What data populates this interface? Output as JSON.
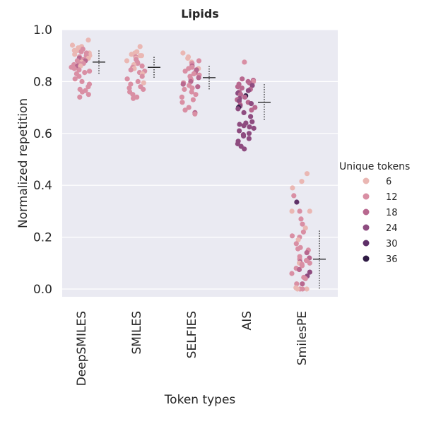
{
  "chart_data": {
    "type": "scatter",
    "title": "Lipids",
    "xlabel": "Token types",
    "ylabel": "Normalized repetition",
    "categories": [
      "DeepSMILES",
      "SMILES",
      "SELFIES",
      "AIS",
      "SmilesPE"
    ],
    "ylim": [
      -0.03,
      1.0
    ],
    "yticks": [
      0.0,
      0.2,
      0.4,
      0.6,
      0.8,
      1.0
    ],
    "grid": true,
    "legend": {
      "title": "Unique tokens",
      "placement": "right",
      "entries": [
        "6",
        "12",
        "18",
        "24",
        "30",
        "36"
      ],
      "colors": [
        "#eab7b3",
        "#d98fa4",
        "#b8688f",
        "#8e4c80",
        "#5e3068",
        "#2f1b44"
      ]
    },
    "summary": [
      {
        "category": "DeepSMILES",
        "mean": 0.875,
        "std_low": 0.825,
        "std_high": 0.92
      },
      {
        "category": "SMILES",
        "mean": 0.855,
        "std_low": 0.81,
        "std_high": 0.895
      },
      {
        "category": "SELFIES",
        "mean": 0.815,
        "std_low": 0.765,
        "std_high": 0.86
      },
      {
        "category": "AIS",
        "mean": 0.72,
        "std_low": 0.65,
        "std_high": 0.79
      },
      {
        "category": "SmilesPE",
        "mean": 0.115,
        "std_low": 0.0,
        "std_high": 0.225
      }
    ],
    "series": [
      {
        "category": "DeepSMILES",
        "points": [
          [
            0.96,
            6
          ],
          [
            0.94,
            8
          ],
          [
            0.935,
            6
          ],
          [
            0.93,
            6
          ],
          [
            0.93,
            8
          ],
          [
            0.925,
            10
          ],
          [
            0.92,
            6
          ],
          [
            0.92,
            8
          ],
          [
            0.915,
            12
          ],
          [
            0.91,
            6
          ],
          [
            0.91,
            10
          ],
          [
            0.905,
            8
          ],
          [
            0.9,
            6
          ],
          [
            0.9,
            14
          ],
          [
            0.895,
            12
          ],
          [
            0.89,
            8
          ],
          [
            0.89,
            20
          ],
          [
            0.885,
            10
          ],
          [
            0.88,
            12
          ],
          [
            0.88,
            16
          ],
          [
            0.875,
            8
          ],
          [
            0.87,
            10
          ],
          [
            0.87,
            14
          ],
          [
            0.865,
            12
          ],
          [
            0.86,
            16
          ],
          [
            0.86,
            8
          ],
          [
            0.855,
            12
          ],
          [
            0.85,
            10
          ],
          [
            0.845,
            14
          ],
          [
            0.84,
            12
          ],
          [
            0.835,
            10
          ],
          [
            0.83,
            12
          ],
          [
            0.82,
            14
          ],
          [
            0.81,
            10
          ],
          [
            0.8,
            12
          ],
          [
            0.79,
            14
          ],
          [
            0.78,
            10
          ],
          [
            0.77,
            12
          ],
          [
            0.765,
            10
          ],
          [
            0.76,
            12
          ],
          [
            0.75,
            14
          ],
          [
            0.74,
            12
          ]
        ]
      },
      {
        "category": "SMILES",
        "points": [
          [
            0.935,
            6
          ],
          [
            0.915,
            6
          ],
          [
            0.91,
            8
          ],
          [
            0.905,
            6
          ],
          [
            0.9,
            8
          ],
          [
            0.9,
            6
          ],
          [
            0.895,
            10
          ],
          [
            0.89,
            8
          ],
          [
            0.885,
            12
          ],
          [
            0.88,
            8
          ],
          [
            0.875,
            10
          ],
          [
            0.87,
            12
          ],
          [
            0.865,
            8
          ],
          [
            0.86,
            10
          ],
          [
            0.855,
            12
          ],
          [
            0.85,
            8
          ],
          [
            0.845,
            14
          ],
          [
            0.84,
            10
          ],
          [
            0.835,
            12
          ],
          [
            0.83,
            8
          ],
          [
            0.82,
            10
          ],
          [
            0.81,
            12
          ],
          [
            0.8,
            10
          ],
          [
            0.795,
            8
          ],
          [
            0.79,
            12
          ],
          [
            0.78,
            10
          ],
          [
            0.775,
            12
          ],
          [
            0.77,
            10
          ],
          [
            0.76,
            12
          ],
          [
            0.75,
            10
          ],
          [
            0.74,
            12
          ],
          [
            0.735,
            12
          ]
        ]
      },
      {
        "category": "SELFIES",
        "points": [
          [
            0.91,
            6
          ],
          [
            0.895,
            8
          ],
          [
            0.89,
            8
          ],
          [
            0.88,
            10
          ],
          [
            0.875,
            6
          ],
          [
            0.87,
            12
          ],
          [
            0.865,
            10
          ],
          [
            0.86,
            16
          ],
          [
            0.855,
            12
          ],
          [
            0.85,
            14
          ],
          [
            0.85,
            8
          ],
          [
            0.845,
            18
          ],
          [
            0.84,
            12
          ],
          [
            0.835,
            16
          ],
          [
            0.83,
            14
          ],
          [
            0.825,
            10
          ],
          [
            0.82,
            12
          ],
          [
            0.815,
            18
          ],
          [
            0.81,
            14
          ],
          [
            0.805,
            12
          ],
          [
            0.8,
            16
          ],
          [
            0.795,
            14
          ],
          [
            0.79,
            18
          ],
          [
            0.785,
            12
          ],
          [
            0.78,
            16
          ],
          [
            0.775,
            14
          ],
          [
            0.77,
            12
          ],
          [
            0.76,
            14
          ],
          [
            0.75,
            12
          ],
          [
            0.74,
            14
          ],
          [
            0.73,
            12
          ],
          [
            0.72,
            14
          ],
          [
            0.7,
            12
          ],
          [
            0.69,
            14
          ],
          [
            0.68,
            16
          ],
          [
            0.675,
            14
          ]
        ]
      },
      {
        "category": "AIS",
        "points": [
          [
            0.875,
            14
          ],
          [
            0.81,
            18
          ],
          [
            0.805,
            16
          ],
          [
            0.8,
            20
          ],
          [
            0.8,
            14
          ],
          [
            0.795,
            16
          ],
          [
            0.79,
            18
          ],
          [
            0.785,
            22
          ],
          [
            0.78,
            16
          ],
          [
            0.775,
            20
          ],
          [
            0.77,
            18
          ],
          [
            0.765,
            24
          ],
          [
            0.76,
            20
          ],
          [
            0.755,
            22
          ],
          [
            0.75,
            18
          ],
          [
            0.745,
            36
          ],
          [
            0.74,
            20
          ],
          [
            0.735,
            22
          ],
          [
            0.73,
            18
          ],
          [
            0.725,
            24
          ],
          [
            0.72,
            20
          ],
          [
            0.715,
            22
          ],
          [
            0.71,
            16
          ],
          [
            0.705,
            24
          ],
          [
            0.7,
            36
          ],
          [
            0.7,
            20
          ],
          [
            0.695,
            22
          ],
          [
            0.69,
            18
          ],
          [
            0.68,
            22
          ],
          [
            0.665,
            24
          ],
          [
            0.645,
            26
          ],
          [
            0.64,
            24
          ],
          [
            0.635,
            26
          ],
          [
            0.63,
            22
          ],
          [
            0.625,
            24
          ],
          [
            0.62,
            22
          ],
          [
            0.61,
            24
          ],
          [
            0.6,
            26
          ],
          [
            0.595,
            24
          ],
          [
            0.59,
            22
          ],
          [
            0.58,
            24
          ],
          [
            0.57,
            26
          ],
          [
            0.56,
            24
          ],
          [
            0.55,
            22
          ],
          [
            0.54,
            24
          ]
        ]
      },
      {
        "category": "SmilesPE",
        "points": [
          [
            0.445,
            6
          ],
          [
            0.415,
            8
          ],
          [
            0.39,
            8
          ],
          [
            0.36,
            10
          ],
          [
            0.335,
            30
          ],
          [
            0.3,
            8
          ],
          [
            0.3,
            10
          ],
          [
            0.3,
            6
          ],
          [
            0.27,
            10
          ],
          [
            0.25,
            12
          ],
          [
            0.235,
            8
          ],
          [
            0.22,
            12
          ],
          [
            0.205,
            10
          ],
          [
            0.2,
            14
          ],
          [
            0.19,
            8
          ],
          [
            0.175,
            12
          ],
          [
            0.16,
            10
          ],
          [
            0.155,
            14
          ],
          [
            0.15,
            12
          ],
          [
            0.14,
            16
          ],
          [
            0.125,
            10
          ],
          [
            0.12,
            18
          ],
          [
            0.115,
            12
          ],
          [
            0.11,
            14
          ],
          [
            0.105,
            16
          ],
          [
            0.1,
            10
          ],
          [
            0.1,
            8
          ],
          [
            0.095,
            12
          ],
          [
            0.09,
            10
          ],
          [
            0.08,
            14
          ],
          [
            0.075,
            16
          ],
          [
            0.065,
            22
          ],
          [
            0.06,
            12
          ],
          [
            0.05,
            24
          ],
          [
            0.045,
            10
          ],
          [
            0.04,
            12
          ],
          [
            0.02,
            14
          ],
          [
            0.02,
            18
          ],
          [
            0.005,
            8
          ],
          [
            0.0,
            6
          ],
          [
            0.0,
            10
          ],
          [
            0.0,
            12
          ],
          [
            0.0,
            8
          ]
        ]
      }
    ]
  }
}
